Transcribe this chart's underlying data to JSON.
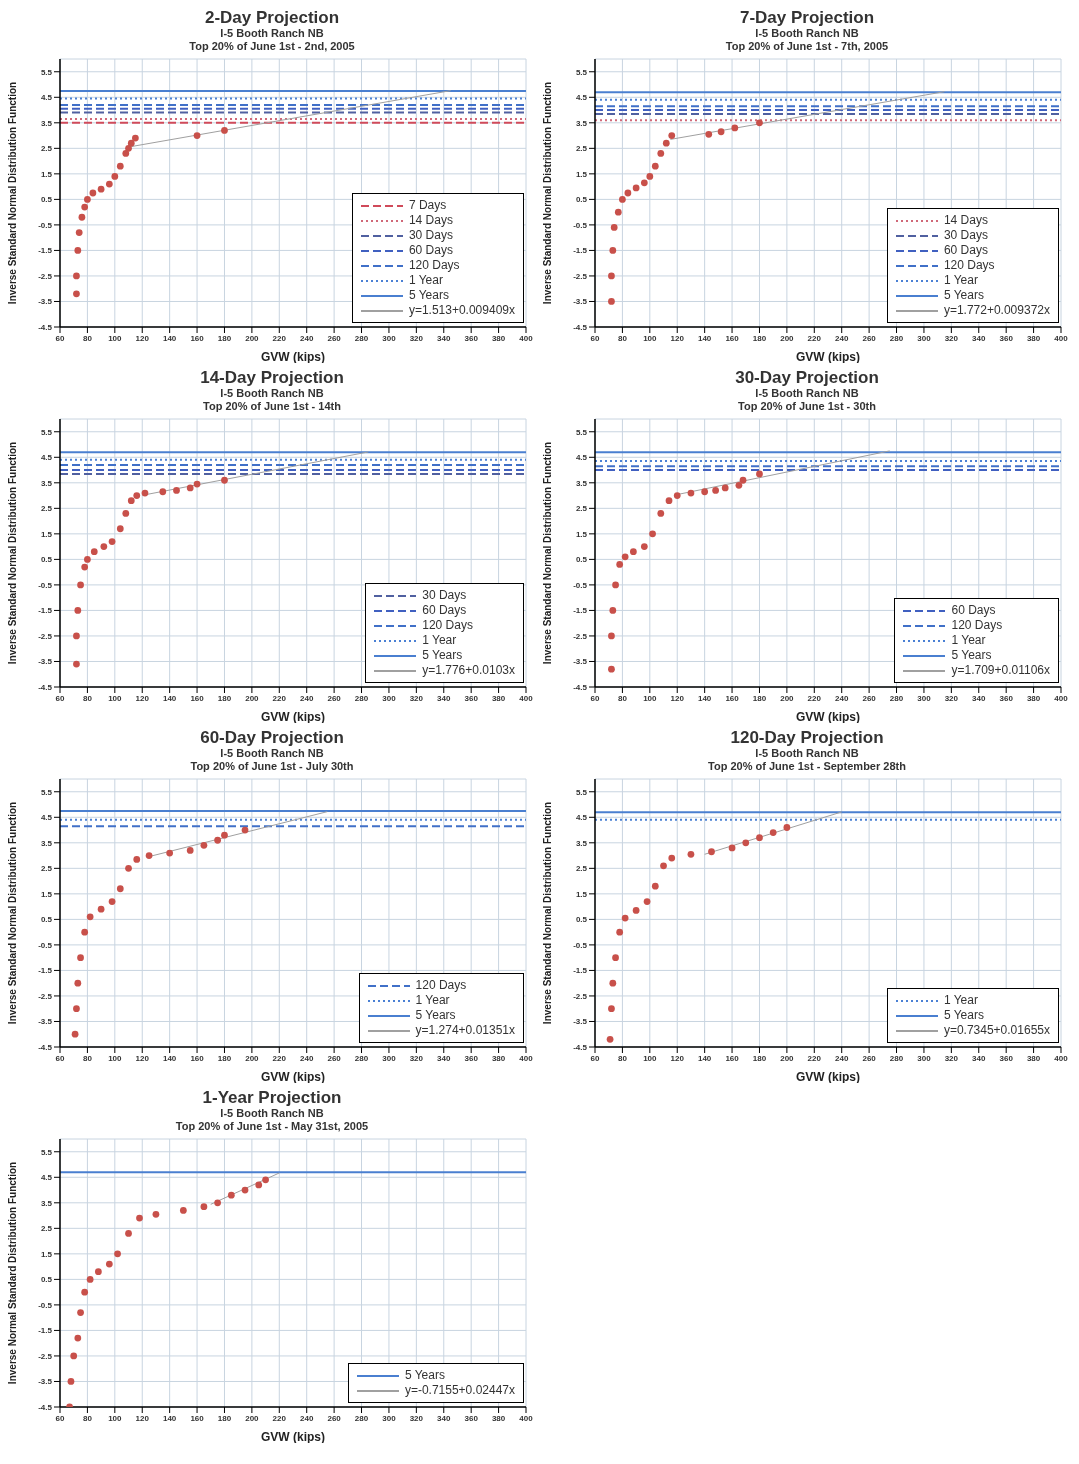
{
  "chart_data": [
    {
      "type": "scatter",
      "title": "2-Day Projection",
      "subtitle": "I-5 Booth Ranch NB\nTop 20% of June 1st - 2nd, 2005",
      "xlabel": "GVW (kips)",
      "ylabel": "Inverse Standard Normal Distribution Function",
      "xlim": [
        60,
        400
      ],
      "xticks": [
        60,
        80,
        100,
        120,
        140,
        160,
        180,
        200,
        220,
        240,
        260,
        280,
        300,
        320,
        340,
        360,
        380,
        400
      ],
      "ylim": [
        -4.5,
        6
      ],
      "yticks": [
        -4.5,
        -3.5,
        -2.5,
        -1.5,
        -0.5,
        0.5,
        1.5,
        2.5,
        3.5,
        4.5,
        5.5
      ],
      "grid": true,
      "legend": "bottom right",
      "series": [
        {
          "type": "scatter",
          "color": "#c8504a",
          "marker": "circle",
          "x": [
            72,
            72,
            73,
            74,
            76,
            78,
            80,
            84,
            90,
            96,
            100,
            104,
            108,
            110,
            112,
            115,
            160,
            180
          ],
          "values": [
            -3.2,
            -2.5,
            -1.5,
            -0.8,
            -0.2,
            0.2,
            0.5,
            0.75,
            0.9,
            1.1,
            1.4,
            1.8,
            2.3,
            2.5,
            2.7,
            2.9,
            3.0,
            3.2
          ]
        },
        {
          "type": "line",
          "name": "7 Days",
          "color": "#d04a5a",
          "line_style": "dashed",
          "x": [
            60,
            400
          ],
          "values": [
            3.5,
            3.5
          ]
        },
        {
          "type": "line",
          "name": "14 Days",
          "color": "#d06878",
          "line_style": "dotted",
          "x": [
            60,
            400
          ],
          "values": [
            3.65,
            3.65
          ]
        },
        {
          "type": "line",
          "name": "30 Days",
          "color": "#5060a0",
          "line_style": "dashed",
          "x": [
            60,
            400
          ],
          "values": [
            3.9,
            3.9
          ]
        },
        {
          "type": "line",
          "name": "60 Days",
          "color": "#4060c0",
          "line_style": "dashed",
          "x": [
            60,
            400
          ],
          "values": [
            4.05,
            4.05
          ]
        },
        {
          "type": "line",
          "name": "120 Days",
          "color": "#4070c8",
          "line_style": "dashed",
          "x": [
            60,
            400
          ],
          "values": [
            4.2,
            4.2
          ]
        },
        {
          "type": "line",
          "name": "1 Year",
          "color": "#4a80d4",
          "line_style": "dotted",
          "x": [
            60,
            400
          ],
          "values": [
            4.45,
            4.45
          ]
        },
        {
          "type": "line",
          "name": "5 Years",
          "color": "#4a7fd0",
          "line_style": "solid",
          "x": [
            60,
            400
          ],
          "values": [
            4.75,
            4.75
          ]
        },
        {
          "type": "line",
          "name": "y=1.513+0.009409x",
          "color": "#a0a0a0",
          "line_style": "solid",
          "x": [
            110,
            345
          ],
          "values": [
            2.55,
            4.76
          ]
        }
      ]
    },
    {
      "type": "scatter",
      "title": "7-Day Projection",
      "subtitle": "I-5 Booth Ranch NB\nTop 20% of June 1st - 7th, 2005",
      "xlabel": "GVW (kips)",
      "ylabel": "Inverse Standard Normal Distribution Function",
      "xlim": [
        60,
        400
      ],
      "xticks": [
        60,
        80,
        100,
        120,
        140,
        160,
        180,
        200,
        220,
        240,
        260,
        280,
        300,
        320,
        340,
        360,
        380,
        400
      ],
      "ylim": [
        -4.5,
        6
      ],
      "yticks": [
        -4.5,
        -3.5,
        -2.5,
        -1.5,
        -0.5,
        0.5,
        1.5,
        2.5,
        3.5,
        4.5,
        5.5
      ],
      "grid": true,
      "legend": "bottom right",
      "series": [
        {
          "type": "scatter",
          "color": "#c8504a",
          "marker": "circle",
          "x": [
            72,
            72,
            73,
            74,
            77,
            80,
            84,
            90,
            96,
            100,
            104,
            108,
            112,
            116,
            143,
            152,
            162,
            180
          ],
          "values": [
            -3.5,
            -2.5,
            -1.5,
            -0.6,
            0,
            0.5,
            0.75,
            0.95,
            1.15,
            1.4,
            1.8,
            2.3,
            2.7,
            3.0,
            3.05,
            3.15,
            3.3,
            3.5
          ]
        },
        {
          "type": "line",
          "name": "14 Days",
          "color": "#d06878",
          "line_style": "dotted",
          "x": [
            60,
            400
          ],
          "values": [
            3.6,
            3.6
          ]
        },
        {
          "type": "line",
          "name": "30 Days",
          "color": "#5060a0",
          "line_style": "dashed",
          "x": [
            60,
            400
          ],
          "values": [
            3.85,
            3.85
          ]
        },
        {
          "type": "line",
          "name": "60 Days",
          "color": "#4060c0",
          "line_style": "dashed",
          "x": [
            60,
            400
          ],
          "values": [
            4.0,
            4.0
          ]
        },
        {
          "type": "line",
          "name": "120 Days",
          "color": "#4070c8",
          "line_style": "dashed",
          "x": [
            60,
            400
          ],
          "values": [
            4.15,
            4.15
          ]
        },
        {
          "type": "line",
          "name": "1 Year",
          "color": "#4a80d4",
          "line_style": "dotted",
          "x": [
            60,
            400
          ],
          "values": [
            4.4,
            4.4
          ]
        },
        {
          "type": "line",
          "name": "5 Years",
          "color": "#4a7fd0",
          "line_style": "solid",
          "x": [
            60,
            400
          ],
          "values": [
            4.7,
            4.7
          ]
        },
        {
          "type": "line",
          "name": "y=1.772+0.009372x",
          "color": "#a0a0a0",
          "line_style": "solid",
          "x": [
            115,
            315
          ],
          "values": [
            2.85,
            4.72
          ]
        }
      ]
    },
    {
      "type": "scatter",
      "title": "14-Day Projection",
      "subtitle": "I-5 Booth Ranch NB\nTop 20% of June 1st - 14th",
      "xlabel": "GVW (kips)",
      "ylabel": "Inverse Standard Normal Distribution Function",
      "xlim": [
        60,
        400
      ],
      "xticks": [
        60,
        80,
        100,
        120,
        140,
        160,
        180,
        200,
        220,
        240,
        260,
        280,
        300,
        320,
        340,
        360,
        380,
        400
      ],
      "ylim": [
        -4.5,
        6
      ],
      "yticks": [
        -4.5,
        -3.5,
        -2.5,
        -1.5,
        -0.5,
        0.5,
        1.5,
        2.5,
        3.5,
        4.5,
        5.5
      ],
      "grid": true,
      "legend": "bottom right",
      "series": [
        {
          "type": "scatter",
          "color": "#c8504a",
          "marker": "circle",
          "x": [
            72,
            72,
            73,
            75,
            78,
            80,
            85,
            92,
            98,
            104,
            108,
            112,
            116,
            122,
            135,
            145,
            155,
            160,
            180
          ],
          "values": [
            -3.6,
            -2.5,
            -1.5,
            -0.5,
            0.2,
            0.5,
            0.8,
            1.0,
            1.2,
            1.7,
            2.3,
            2.8,
            3.0,
            3.1,
            3.15,
            3.2,
            3.3,
            3.45,
            3.6
          ]
        },
        {
          "type": "line",
          "name": "30 Days",
          "color": "#5060a0",
          "line_style": "dashed",
          "x": [
            60,
            400
          ],
          "values": [
            3.85,
            3.85
          ]
        },
        {
          "type": "line",
          "name": "60 Days",
          "color": "#4060c0",
          "line_style": "dashed",
          "x": [
            60,
            400
          ],
          "values": [
            4.0,
            4.0
          ]
        },
        {
          "type": "line",
          "name": "120 Days",
          "color": "#4070c8",
          "line_style": "dashed",
          "x": [
            60,
            400
          ],
          "values": [
            4.2,
            4.2
          ]
        },
        {
          "type": "line",
          "name": "1 Year",
          "color": "#4a80d4",
          "line_style": "dotted",
          "x": [
            60,
            400
          ],
          "values": [
            4.4,
            4.4
          ]
        },
        {
          "type": "line",
          "name": "5 Years",
          "color": "#4a7fd0",
          "line_style": "solid",
          "x": [
            60,
            400
          ],
          "values": [
            4.7,
            4.7
          ]
        },
        {
          "type": "line",
          "name": "y=1.776+0.0103x",
          "color": "#a0a0a0",
          "line_style": "solid",
          "x": [
            120,
            285
          ],
          "values": [
            3.01,
            4.71
          ]
        }
      ]
    },
    {
      "type": "scatter",
      "title": "30-Day Projection",
      "subtitle": "I-5 Booth Ranch NB\nTop 20% of June 1st - 30th",
      "xlabel": "GVW (kips)",
      "ylabel": "Inverse Standard Normal Distribution Function",
      "xlim": [
        60,
        400
      ],
      "xticks": [
        60,
        80,
        100,
        120,
        140,
        160,
        180,
        200,
        220,
        240,
        260,
        280,
        300,
        320,
        340,
        360,
        380,
        400
      ],
      "ylim": [
        -4.5,
        6
      ],
      "yticks": [
        -4.5,
        -3.5,
        -2.5,
        -1.5,
        -0.5,
        0.5,
        1.5,
        2.5,
        3.5,
        4.5,
        5.5
      ],
      "grid": true,
      "legend": "bottom right",
      "series": [
        {
          "type": "scatter",
          "color": "#c8504a",
          "marker": "circle",
          "x": [
            72,
            72,
            73,
            75,
            78,
            82,
            88,
            96,
            102,
            108,
            114,
            120,
            130,
            140,
            148,
            155,
            165,
            168,
            180
          ],
          "values": [
            -3.8,
            -2.5,
            -1.5,
            -0.5,
            0.3,
            0.6,
            0.8,
            1.0,
            1.5,
            2.3,
            2.8,
            3.0,
            3.1,
            3.15,
            3.2,
            3.3,
            3.4,
            3.6,
            3.85
          ]
        },
        {
          "type": "line",
          "name": "60 Days",
          "color": "#4060c0",
          "line_style": "dashed",
          "x": [
            60,
            400
          ],
          "values": [
            4.0,
            4.0
          ]
        },
        {
          "type": "line",
          "name": "120 Days",
          "color": "#4070c8",
          "line_style": "dashed",
          "x": [
            60,
            400
          ],
          "values": [
            4.15,
            4.15
          ]
        },
        {
          "type": "line",
          "name": "1 Year",
          "color": "#4a80d4",
          "line_style": "dotted",
          "x": [
            60,
            400
          ],
          "values": [
            4.35,
            4.35
          ]
        },
        {
          "type": "line",
          "name": "5 Years",
          "color": "#4a7fd0",
          "line_style": "solid",
          "x": [
            60,
            400
          ],
          "values": [
            4.7,
            4.7
          ]
        },
        {
          "type": "line",
          "name": "y=1.709+0.01106x",
          "color": "#a0a0a0",
          "line_style": "solid",
          "x": [
            120,
            275
          ],
          "values": [
            3.04,
            4.75
          ]
        }
      ]
    },
    {
      "type": "scatter",
      "title": "60-Day Projection",
      "subtitle": "I-5 Booth Ranch NB\nTop 20% of June 1st - July 30th",
      "xlabel": "GVW (kips)",
      "ylabel": "Inverse Standard Normal Distribution Function",
      "xlim": [
        60,
        400
      ],
      "xticks": [
        60,
        80,
        100,
        120,
        140,
        160,
        180,
        200,
        220,
        240,
        260,
        280,
        300,
        320,
        340,
        360,
        380,
        400
      ],
      "ylim": [
        -4.5,
        6
      ],
      "yticks": [
        -4.5,
        -3.5,
        -2.5,
        -1.5,
        -0.5,
        0.5,
        1.5,
        2.5,
        3.5,
        4.5,
        5.5
      ],
      "grid": true,
      "legend": "bottom right",
      "series": [
        {
          "type": "scatter",
          "color": "#c8504a",
          "marker": "circle",
          "x": [
            71,
            72,
            73,
            75,
            78,
            82,
            90,
            98,
            104,
            110,
            116,
            125,
            140,
            155,
            165,
            175,
            180,
            195
          ],
          "values": [
            -4.0,
            -3.0,
            -2.0,
            -1.0,
            0,
            0.6,
            0.9,
            1.2,
            1.7,
            2.5,
            2.85,
            3.0,
            3.1,
            3.2,
            3.4,
            3.6,
            3.8,
            4.0
          ]
        },
        {
          "type": "line",
          "name": "120 Days",
          "color": "#4070c8",
          "line_style": "dashed",
          "x": [
            60,
            400
          ],
          "values": [
            4.15,
            4.15
          ]
        },
        {
          "type": "line",
          "name": "1 Year",
          "color": "#4a80d4",
          "line_style": "dotted",
          "x": [
            60,
            400
          ],
          "values": [
            4.4,
            4.4
          ]
        },
        {
          "type": "line",
          "name": "5 Years",
          "color": "#4a7fd0",
          "line_style": "solid",
          "x": [
            60,
            400
          ],
          "values": [
            4.75,
            4.75
          ]
        },
        {
          "type": "line",
          "name": "y=1.274+0.01351x",
          "color": "#a0a0a0",
          "line_style": "solid",
          "x": [
            125,
            255
          ],
          "values": [
            2.96,
            4.72
          ]
        }
      ]
    },
    {
      "type": "scatter",
      "title": "120-Day Projection",
      "subtitle": "I-5 Booth Ranch NB\nTop 20% of June 1st - September 28th",
      "xlabel": "GVW (kips)",
      "ylabel": "Inverse Standard Normal Distribution Function",
      "xlim": [
        60,
        400
      ],
      "xticks": [
        60,
        80,
        100,
        120,
        140,
        160,
        180,
        200,
        220,
        240,
        260,
        280,
        300,
        320,
        340,
        360,
        380,
        400
      ],
      "ylim": [
        -4.5,
        6
      ],
      "yticks": [
        -4.5,
        -3.5,
        -2.5,
        -1.5,
        -0.5,
        0.5,
        1.5,
        2.5,
        3.5,
        4.5,
        5.5
      ],
      "grid": true,
      "legend": "bottom right",
      "series": [
        {
          "type": "scatter",
          "color": "#c8504a",
          "marker": "circle",
          "x": [
            71,
            72,
            73,
            75,
            78,
            82,
            90,
            98,
            104,
            110,
            116,
            130,
            145,
            160,
            170,
            180,
            190,
            200
          ],
          "values": [
            -4.2,
            -3.0,
            -2.0,
            -1.0,
            0,
            0.55,
            0.85,
            1.2,
            1.8,
            2.6,
            2.9,
            3.05,
            3.15,
            3.3,
            3.5,
            3.7,
            3.9,
            4.1
          ]
        },
        {
          "type": "line",
          "name": "1 Year",
          "color": "#4a80d4",
          "line_style": "dotted",
          "x": [
            60,
            400
          ],
          "values": [
            4.4,
            4.4
          ]
        },
        {
          "type": "line",
          "name": "5 Years",
          "color": "#4a7fd0",
          "line_style": "solid",
          "x": [
            60,
            400
          ],
          "values": [
            4.7,
            4.7
          ]
        },
        {
          "type": "line",
          "name": "y=0.7345+0.01655x",
          "color": "#a0a0a0",
          "line_style": "solid",
          "x": [
            140,
            240
          ],
          "values": [
            3.05,
            4.71
          ]
        }
      ]
    },
    {
      "type": "scatter",
      "title": "1-Year Projection",
      "subtitle": "I-5 Booth Ranch NB\nTop 20% of June 1st - May 31st, 2005",
      "xlabel": "GVW (kips)",
      "ylabel": "Inverse Normal Standard Distribution Function",
      "xlim": [
        60,
        400
      ],
      "xticks": [
        60,
        80,
        100,
        120,
        140,
        160,
        180,
        200,
        220,
        240,
        260,
        280,
        300,
        320,
        340,
        360,
        380,
        400
      ],
      "ylim": [
        -4.5,
        6
      ],
      "yticks": [
        -4.5,
        -3.5,
        -2.5,
        -1.5,
        -0.5,
        0.5,
        1.5,
        2.5,
        3.5,
        4.5,
        5.5
      ],
      "grid": true,
      "legend": "bottom right",
      "series": [
        {
          "type": "scatter",
          "color": "#c8504a",
          "marker": "circle",
          "x": [
            67,
            68,
            70,
            73,
            75,
            78,
            82,
            88,
            96,
            102,
            110,
            118,
            130,
            150,
            165,
            175,
            185,
            195,
            205,
            210
          ],
          "values": [
            -4.5,
            -3.5,
            -2.5,
            -1.8,
            -0.8,
            0,
            0.5,
            0.8,
            1.1,
            1.5,
            2.3,
            2.9,
            3.05,
            3.2,
            3.35,
            3.5,
            3.8,
            4.0,
            4.2,
            4.4
          ]
        },
        {
          "type": "line",
          "name": "5 Years",
          "color": "#4a7fd0",
          "line_style": "solid",
          "x": [
            60,
            400
          ],
          "values": [
            4.7,
            4.7
          ]
        },
        {
          "type": "line",
          "name": "y=-0.7155+0.02447x",
          "color": "#a0a0a0",
          "line_style": "solid",
          "x": [
            170,
            220
          ],
          "values": [
            3.44,
            4.67
          ]
        }
      ]
    }
  ]
}
